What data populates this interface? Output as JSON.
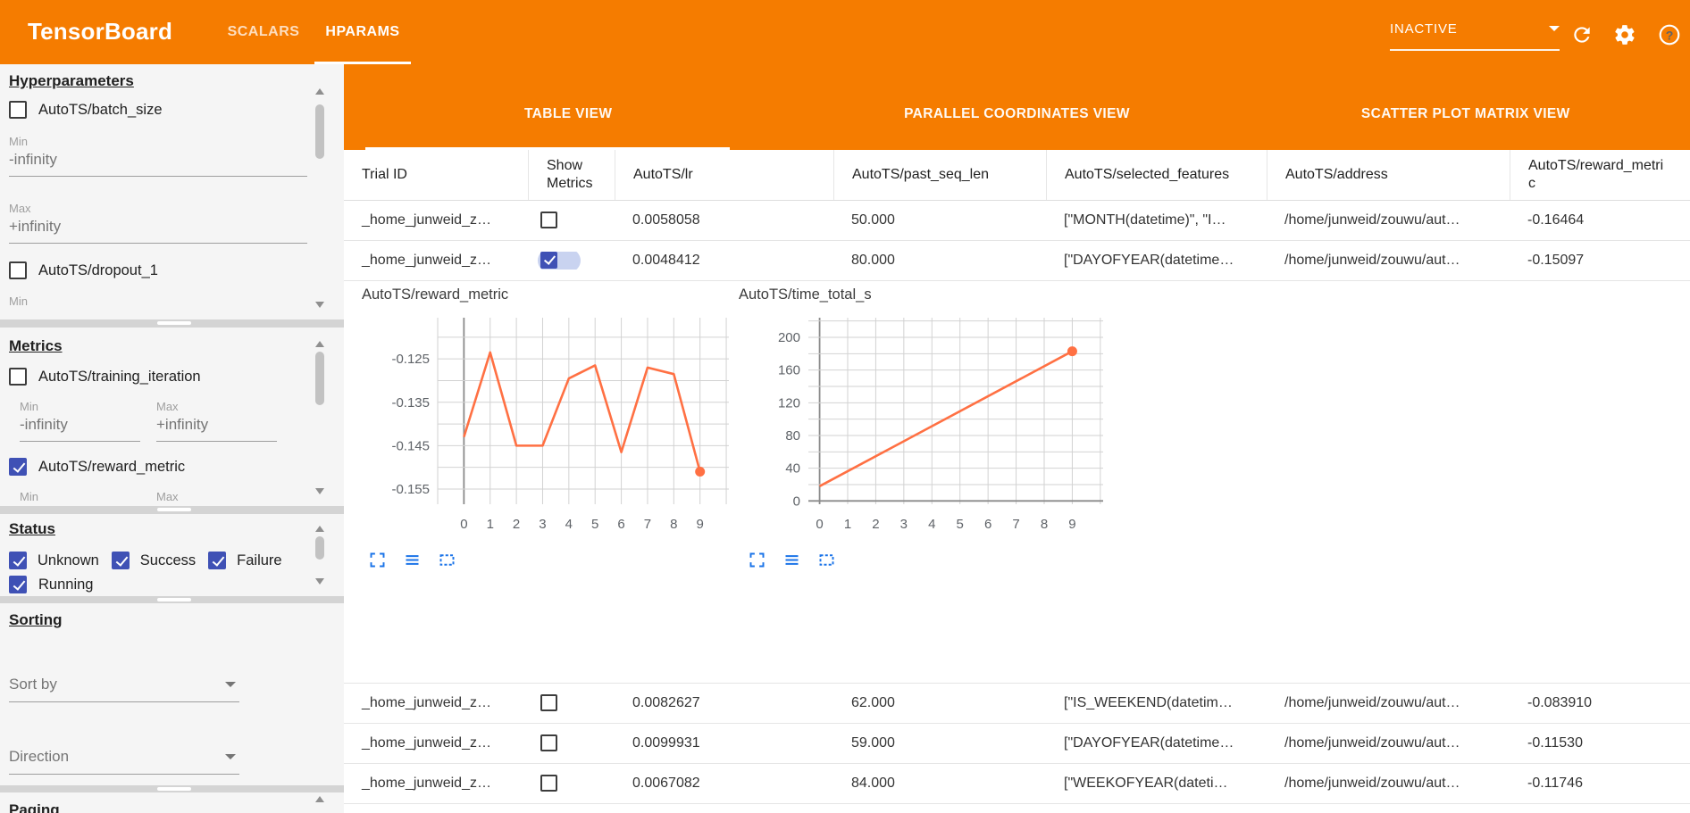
{
  "colors": {
    "accent": "#f57c00",
    "checkbox_blue": "#3f51b5",
    "chart_line": "#ff7043",
    "tool_icon_blue": "#1a73e8"
  },
  "app_bar": {
    "title": "TensorBoard",
    "nav_tabs": [
      {
        "label": "SCALARS",
        "active": false
      },
      {
        "label": "HPARAMS",
        "active": true
      }
    ],
    "run_selector": {
      "value": "INACTIVE"
    },
    "icons": [
      "reload-icon",
      "settings-icon",
      "help-icon"
    ]
  },
  "sidebar": {
    "hyperparameters": {
      "title": "Hyperparameters",
      "params": [
        {
          "label": "AutoTS/batch_size",
          "checked": false
        },
        {
          "label": "AutoTS/dropout_1",
          "checked": false
        }
      ],
      "min_label": "Min",
      "max_label": "Max",
      "min_placeholder": "-infinity",
      "max_placeholder": "+infinity",
      "clipped_label": "Min"
    },
    "metrics": {
      "title": "Metrics",
      "items": [
        {
          "label": "AutoTS/training_iteration",
          "checked": false
        },
        {
          "label": "AutoTS/reward_metric",
          "checked": true
        }
      ],
      "min_label": "Min",
      "max_label": "Max",
      "min_placeholder": "-infinity",
      "max_placeholder": "+infinity"
    },
    "status": {
      "title": "Status",
      "options": [
        {
          "label": "Unknown",
          "checked": true
        },
        {
          "label": "Success",
          "checked": true
        },
        {
          "label": "Failure",
          "checked": true
        },
        {
          "label": "Running",
          "checked": true
        }
      ]
    },
    "sorting": {
      "title": "Sorting",
      "sort_by_placeholder": "Sort by",
      "direction_placeholder": "Direction"
    },
    "paging": {
      "title": "Paging"
    }
  },
  "main": {
    "view_tabs": [
      {
        "label": "TABLE VIEW",
        "active": true
      },
      {
        "label": "PARALLEL COORDINATES VIEW",
        "active": false
      },
      {
        "label": "SCATTER PLOT MATRIX VIEW",
        "active": false
      }
    ],
    "table": {
      "columns": [
        "Trial ID",
        "Show Metrics",
        "AutoTS/lr",
        "AutoTS/past_seq_len",
        "AutoTS/selected_features",
        "AutoTS/address",
        "AutoTS/reward_metric"
      ],
      "rows": [
        {
          "trial_id": "_home_junweid_z…",
          "show_metrics": false,
          "expanded": false,
          "lr": "0.0058058",
          "past_seq_len": "50.000",
          "selected_features": "[\"MONTH(datetime)\", \"I…",
          "address": "/home/junweid/zouwu/aut…",
          "reward_metric": "-0.16464"
        },
        {
          "trial_id": "_home_junweid_z…",
          "show_metrics": true,
          "expanded": true,
          "lr": "0.0048412",
          "past_seq_len": "80.000",
          "selected_features": "[\"DAYOFYEAR(datetime…",
          "address": "/home/junweid/zouwu/aut…",
          "reward_metric": "-0.15097"
        },
        {
          "trial_id": "_home_junweid_z…",
          "show_metrics": false,
          "expanded": false,
          "lr": "0.0082627",
          "past_seq_len": "62.000",
          "selected_features": "[\"IS_WEEKEND(datetim…",
          "address": "/home/junweid/zouwu/aut…",
          "reward_metric": "-0.083910"
        },
        {
          "trial_id": "_home_junweid_z…",
          "show_metrics": false,
          "expanded": false,
          "lr": "0.0099931",
          "past_seq_len": "59.000",
          "selected_features": "[\"DAYOFYEAR(datetime…",
          "address": "/home/junweid/zouwu/aut…",
          "reward_metric": "-0.11530"
        },
        {
          "trial_id": "_home_junweid_z…",
          "show_metrics": false,
          "expanded": false,
          "lr": "0.0067082",
          "past_seq_len": "84.000",
          "selected_features": "[\"WEEKOFYEAR(dateti…",
          "address": "/home/junweid/zouwu/aut…",
          "reward_metric": "-0.11746"
        }
      ]
    },
    "chart_tool_icons": [
      "expand-icon",
      "list-icon",
      "selection-box-icon"
    ]
  },
  "chart_data": [
    {
      "type": "line",
      "title": "AutoTS/reward_metric",
      "x": [
        0,
        1,
        2,
        3,
        4,
        5,
        6,
        7,
        8,
        9
      ],
      "values": [
        -0.143,
        -0.1235,
        -0.145,
        -0.145,
        -0.1295,
        -0.1265,
        -0.1465,
        -0.127,
        -0.1285,
        -0.151
      ],
      "xticks": [
        0,
        1,
        2,
        3,
        4,
        5,
        6,
        7,
        8,
        9
      ],
      "xtick_labels": [
        "0",
        "1",
        "2",
        "3",
        "4",
        "5",
        "6",
        "7",
        "8",
        "9"
      ],
      "yticks": [
        -0.125,
        -0.135,
        -0.145,
        -0.155
      ],
      "ytick_labels": [
        "-0.125",
        "-0.135",
        "-0.145",
        "-0.155"
      ],
      "xlim": [
        -1,
        10.1
      ],
      "ylim": [
        -0.1585,
        -0.1155
      ],
      "y_minor_step": 0.005,
      "grid": true,
      "legend": "none",
      "endpoint_marker": true,
      "line_color": "#ff7043"
    },
    {
      "type": "line",
      "title": "AutoTS/time_total_s",
      "x": [
        0,
        9
      ],
      "values": [
        18,
        183
      ],
      "xticks": [
        0,
        1,
        2,
        3,
        4,
        5,
        6,
        7,
        8,
        9
      ],
      "xtick_labels": [
        "0",
        "1",
        "2",
        "3",
        "4",
        "5",
        "6",
        "7",
        "8",
        "9"
      ],
      "yticks": [
        0,
        40,
        80,
        120,
        160,
        200
      ],
      "ytick_labels": [
        "0",
        "40",
        "80",
        "120",
        "160",
        "200"
      ],
      "xlim": [
        -0.4,
        10.1
      ],
      "ylim": [
        -4,
        224
      ],
      "y_minor_step": 20,
      "grid": true,
      "legend": "none",
      "endpoint_marker": true,
      "line_color": "#ff7043"
    }
  ]
}
